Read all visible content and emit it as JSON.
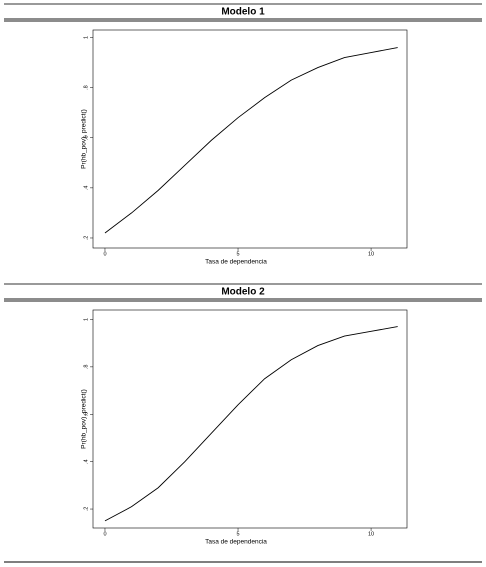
{
  "chart_data": [
    {
      "type": "line",
      "title": "Modelo 1",
      "xlabel": "Tasa de dependencia",
      "ylabel": "Pr(hb_pov), predict()",
      "x": [
        0,
        1,
        2,
        3,
        4,
        5,
        6,
        7,
        8,
        9,
        10,
        11
      ],
      "series": [
        {
          "color": "#000000",
          "values": [
            0.22,
            0.3,
            0.39,
            0.49,
            0.59,
            0.68,
            0.76,
            0.83,
            0.88,
            0.92,
            0.94,
            0.96
          ]
        }
      ],
      "xlim": [
        -0.45,
        11.35
      ],
      "ylim": [
        0.16,
        1.03
      ],
      "xticks": [
        0,
        5,
        10
      ],
      "yticks": [
        {
          "value": 0.2,
          "label": ".2"
        },
        {
          "value": 0.4,
          "label": ".4"
        },
        {
          "value": 0.6,
          "label": ".6"
        },
        {
          "value": 0.8,
          "label": ".8"
        },
        1
      ]
    },
    {
      "type": "line",
      "title": "Modelo 2",
      "xlabel": "Tasa de dependencia",
      "ylabel": "Pr(hb_pov), predict()",
      "x": [
        0,
        1,
        2,
        3,
        4,
        5,
        6,
        7,
        8,
        9,
        10,
        11
      ],
      "series": [
        {
          "color": "#000000",
          "values": [
            0.15,
            0.21,
            0.29,
            0.4,
            0.52,
            0.64,
            0.75,
            0.83,
            0.89,
            0.93,
            0.95,
            0.97
          ]
        }
      ],
      "xlim": [
        -0.45,
        11.35
      ],
      "ylim": [
        0.12,
        1.04
      ],
      "xticks": [
        0,
        5,
        10
      ],
      "yticks": [
        {
          "value": 0.2,
          "label": ".2"
        },
        {
          "value": 0.4,
          "label": ".4"
        },
        {
          "value": 0.6,
          "label": ".6"
        },
        {
          "value": 0.8,
          "label": ".8"
        },
        1
      ]
    }
  ]
}
